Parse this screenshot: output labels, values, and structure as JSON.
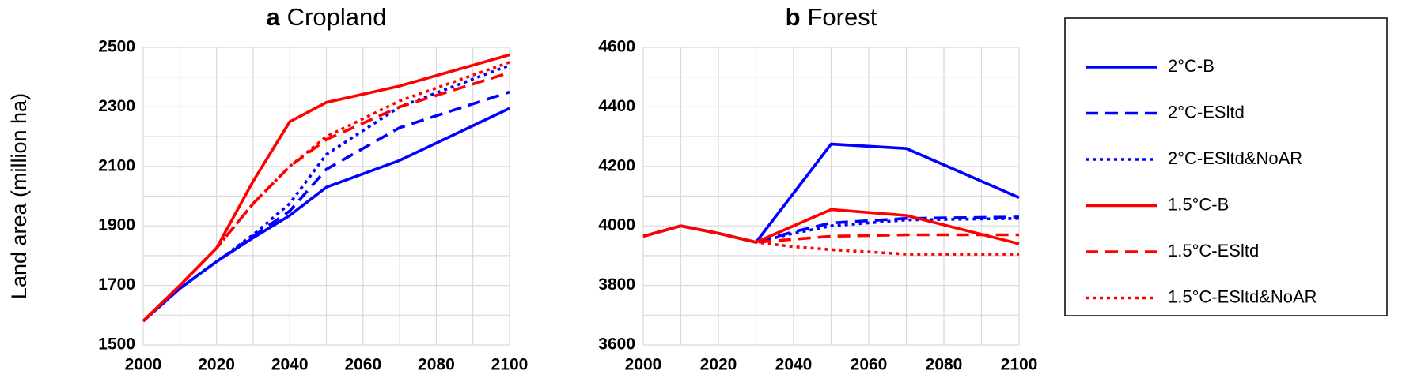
{
  "chart_data": [
    {
      "type": "line",
      "panel": "a",
      "title": "Cropland",
      "y_label": "Land area (million ha)",
      "x": [
        2000,
        2010,
        2020,
        2030,
        2040,
        2050,
        2070,
        2100
      ],
      "xlim": [
        2000,
        2100
      ],
      "xticks": [
        2000,
        2020,
        2040,
        2060,
        2080,
        2100
      ],
      "xgrid": [
        2000,
        2010,
        2020,
        2030,
        2040,
        2050,
        2060,
        2070,
        2080,
        2090,
        2100
      ],
      "ylim": [
        1500,
        2500
      ],
      "yticks": [
        1500,
        1700,
        1900,
        2100,
        2300,
        2500
      ],
      "ygrid": [
        1500,
        1600,
        1700,
        1800,
        1900,
        2000,
        2100,
        2200,
        2300,
        2400,
        2500
      ],
      "legend": "right",
      "series": [
        {
          "name": "2°C-B",
          "color": "#0000ff",
          "dash": "solid",
          "values": [
            1580,
            1690,
            1780,
            1860,
            1935,
            2030,
            2120,
            2295
          ]
        },
        {
          "name": "2°C-ESltd",
          "color": "#0000ff",
          "dash": "dashed",
          "values": [
            1580,
            1690,
            1780,
            1865,
            1950,
            2090,
            2230,
            2350
          ]
        },
        {
          "name": "2°C-ESltd&NoAR",
          "color": "#0000ff",
          "dash": "dotted",
          "values": [
            1580,
            1690,
            1780,
            1870,
            1975,
            2140,
            2300,
            2440
          ]
        },
        {
          "name": "1.5°C-B",
          "color": "#ff0000",
          "dash": "solid",
          "values": [
            1580,
            1700,
            1825,
            2050,
            2250,
            2315,
            2370,
            2475
          ]
        },
        {
          "name": "1.5°C-ESltd",
          "color": "#ff0000",
          "dash": "dashed",
          "values": [
            1580,
            1700,
            1825,
            1975,
            2100,
            2190,
            2300,
            2415
          ]
        },
        {
          "name": "1.5°C-ESltd&NoAR",
          "color": "#ff0000",
          "dash": "dotted",
          "values": [
            1580,
            1700,
            1825,
            1975,
            2100,
            2200,
            2320,
            2450
          ]
        }
      ]
    },
    {
      "type": "line",
      "panel": "b",
      "title": "Forest",
      "x": [
        2000,
        2010,
        2020,
        2030,
        2040,
        2050,
        2070,
        2100
      ],
      "xlim": [
        2000,
        2100
      ],
      "xticks": [
        2000,
        2020,
        2040,
        2060,
        2080,
        2100
      ],
      "xgrid": [
        2000,
        2010,
        2020,
        2030,
        2040,
        2050,
        2060,
        2070,
        2080,
        2090,
        2100
      ],
      "ylim": [
        3600,
        4600
      ],
      "yticks": [
        3600,
        3800,
        4000,
        4200,
        4400,
        4600
      ],
      "ygrid": [
        3600,
        3700,
        3800,
        3900,
        4000,
        4100,
        4200,
        4300,
        4400,
        4500,
        4600
      ],
      "series": [
        {
          "color": "#0000ff",
          "dash": "solid",
          "values": [
            3965,
            4000,
            3975,
            3945,
            4110,
            4275,
            4260,
            4095
          ]
        },
        {
          "color": "#0000ff",
          "dash": "dashed",
          "values": [
            3965,
            4000,
            3975,
            3945,
            3980,
            4010,
            4025,
            4030
          ]
        },
        {
          "color": "#0000ff",
          "dash": "dotted",
          "values": [
            3965,
            4000,
            3975,
            3945,
            3975,
            4000,
            4020,
            4025
          ]
        },
        {
          "color": "#ff0000",
          "dash": "solid",
          "values": [
            3965,
            4000,
            3975,
            3945,
            4000,
            4055,
            4035,
            3940
          ]
        },
        {
          "color": "#ff0000",
          "dash": "dashed",
          "values": [
            3965,
            4000,
            3975,
            3945,
            3955,
            3965,
            3970,
            3970
          ]
        },
        {
          "color": "#ff0000",
          "dash": "dotted",
          "values": [
            3965,
            4000,
            3975,
            3945,
            3930,
            3920,
            3905,
            3905
          ]
        }
      ]
    }
  ]
}
